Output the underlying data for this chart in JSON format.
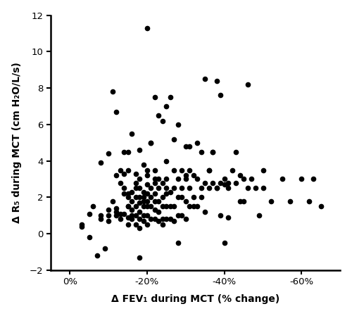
{
  "title": "",
  "xlabel": "Δ FEV₁ during MCT (% change)",
  "ylabel": "Δ R₅ during MCT (cm H₂O/L/s)",
  "xlim": [
    5,
    -70
  ],
  "ylim": [
    -2,
    12
  ],
  "xticks": [
    0,
    -20,
    -40,
    -60
  ],
  "yticks": [
    -2,
    0,
    2,
    4,
    6,
    8,
    10,
    12
  ],
  "marker_color": "black",
  "marker_size": 5.5,
  "background_color": "white",
  "x_data": [
    -3,
    -5,
    -5,
    -8,
    -8,
    -10,
    -10,
    -10,
    -10,
    -12,
    -12,
    -12,
    -12,
    -12,
    -13,
    -13,
    -13,
    -14,
    -14,
    -14,
    -14,
    -14,
    -15,
    -15,
    -15,
    -15,
    -15,
    -15,
    -15,
    -16,
    -16,
    -16,
    -16,
    -16,
    -17,
    -17,
    -17,
    -17,
    -17,
    -17,
    -18,
    -18,
    -18,
    -18,
    -18,
    -18,
    -18,
    -18,
    -19,
    -19,
    -19,
    -19,
    -19,
    -19,
    -20,
    -20,
    -20,
    -20,
    -20,
    -20,
    -20,
    -20,
    -20,
    -21,
    -21,
    -21,
    -21,
    -21,
    -22,
    -22,
    -22,
    -22,
    -22,
    -22,
    -22,
    -23,
    -23,
    -23,
    -23,
    -23,
    -23,
    -24,
    -24,
    -24,
    -24,
    -24,
    -25,
    -25,
    -25,
    -25,
    -25,
    -25,
    -26,
    -26,
    -26,
    -26,
    -27,
    -27,
    -27,
    -27,
    -28,
    -28,
    -28,
    -28,
    -29,
    -29,
    -29,
    -30,
    -30,
    -30,
    -30,
    -30,
    -31,
    -31,
    -31,
    -32,
    -32,
    -33,
    -33,
    -33,
    -34,
    -34,
    -35,
    -35,
    -35,
    -36,
    -36,
    -37,
    -37,
    -38,
    -38,
    -39,
    -39,
    -39,
    -40,
    -40,
    -40,
    -41,
    -41,
    -42,
    -43,
    -44,
    -44,
    -45,
    -45,
    -46,
    -47,
    -48,
    -49,
    -50,
    -52,
    -55,
    -57,
    -60,
    -62,
    -63,
    -65,
    -7,
    -9,
    -11,
    -16,
    -18,
    -21,
    -24,
    -28,
    -32,
    -37,
    -3,
    -6,
    -8,
    -11,
    -13,
    -15,
    -17,
    -19,
    -22,
    -25,
    -27,
    -29,
    -31,
    -34,
    -36,
    -38,
    -41,
    -43,
    -46,
    -50
  ],
  "y_data": [
    0.4,
    -0.2,
    1.1,
    3.9,
    1.0,
    1.0,
    0.7,
    1.3,
    4.4,
    1.0,
    1.2,
    1.4,
    3.2,
    6.7,
    0.8,
    1.1,
    3.5,
    1.1,
    2.2,
    2.5,
    3.3,
    4.5,
    0.5,
    0.9,
    1.5,
    2.0,
    2.2,
    3.5,
    4.5,
    0.8,
    1.0,
    1.3,
    1.8,
    2.3,
    0.5,
    1.0,
    1.5,
    2.0,
    2.8,
    3.3,
    0.3,
    0.8,
    1.2,
    1.7,
    2.0,
    2.5,
    3.0,
    4.6,
    0.7,
    1.0,
    1.5,
    1.8,
    2.3,
    3.8,
    0.5,
    1.0,
    1.5,
    1.8,
    2.2,
    2.7,
    3.2,
    3.5,
    11.3,
    0.8,
    1.5,
    2.0,
    2.5,
    5.0,
    0.8,
    1.3,
    1.8,
    2.2,
    2.8,
    3.5,
    7.5,
    0.7,
    1.2,
    1.8,
    2.5,
    3.0,
    6.5,
    0.8,
    1.5,
    2.0,
    2.8,
    6.2,
    0.8,
    1.5,
    2.2,
    3.0,
    4.0,
    7.0,
    0.8,
    1.5,
    2.3,
    7.5,
    0.7,
    1.5,
    2.5,
    5.2,
    1.0,
    2.0,
    3.0,
    6.0,
    1.0,
    2.0,
    3.5,
    0.8,
    1.8,
    3.0,
    3.2,
    4.8,
    1.5,
    2.5,
    4.8,
    1.5,
    3.2,
    1.5,
    3.0,
    5.0,
    2.0,
    4.5,
    1.2,
    2.8,
    8.5,
    2.5,
    3.5,
    2.8,
    4.5,
    2.5,
    8.4,
    1.0,
    2.8,
    7.6,
    -0.5,
    2.7,
    3.0,
    0.9,
    2.8,
    3.5,
    4.5,
    3.2,
    1.8,
    1.8,
    3.0,
    8.2,
    3.0,
    2.5,
    1.0,
    3.5,
    1.8,
    3.0,
    1.8,
    3.0,
    1.8,
    3.0,
    1.5,
    -1.2,
    -0.8,
    7.8,
    5.5,
    -1.3,
    5.0,
    0.5,
    -0.5,
    2.0,
    4.5,
    0.5,
    1.5,
    0.8,
    1.8,
    2.8,
    1.5,
    2.5,
    2.0,
    3.0,
    2.5,
    3.5,
    2.5,
    3.5,
    2.5,
    3.5,
    2.5,
    2.5,
    2.8,
    2.5,
    2.5
  ]
}
